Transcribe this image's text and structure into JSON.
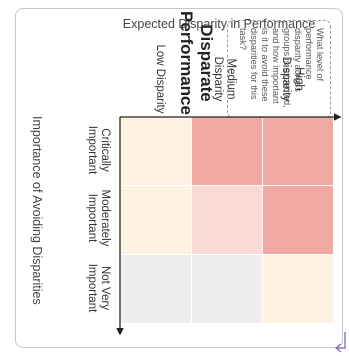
{
  "title": "Disparate Performance",
  "question": "What level of performance disparity across groups is expected, and how important is it to avoid these disparities for this task?",
  "y_axis_title": "Expected Disparity in Performance",
  "x_axis_title": "Importance of Avoiding Disparities",
  "y_levels": [
    "High Disparity",
    "Medium Disparity",
    "Low Disparity"
  ],
  "x_levels": [
    "Critically Important",
    "Moderately Important",
    "Not Very Important"
  ],
  "cells": [
    [
      "#f2a8a2",
      "#f2a8a2",
      "#fdf1df"
    ],
    [
      "#f2a8a2",
      "#fbd9d7",
      "#efeeee"
    ],
    [
      "#fdf1df",
      "#fdf1df",
      "#efeeee"
    ]
  ],
  "colors": {
    "arrow": "#8a73b3",
    "axis": "#222222"
  }
}
